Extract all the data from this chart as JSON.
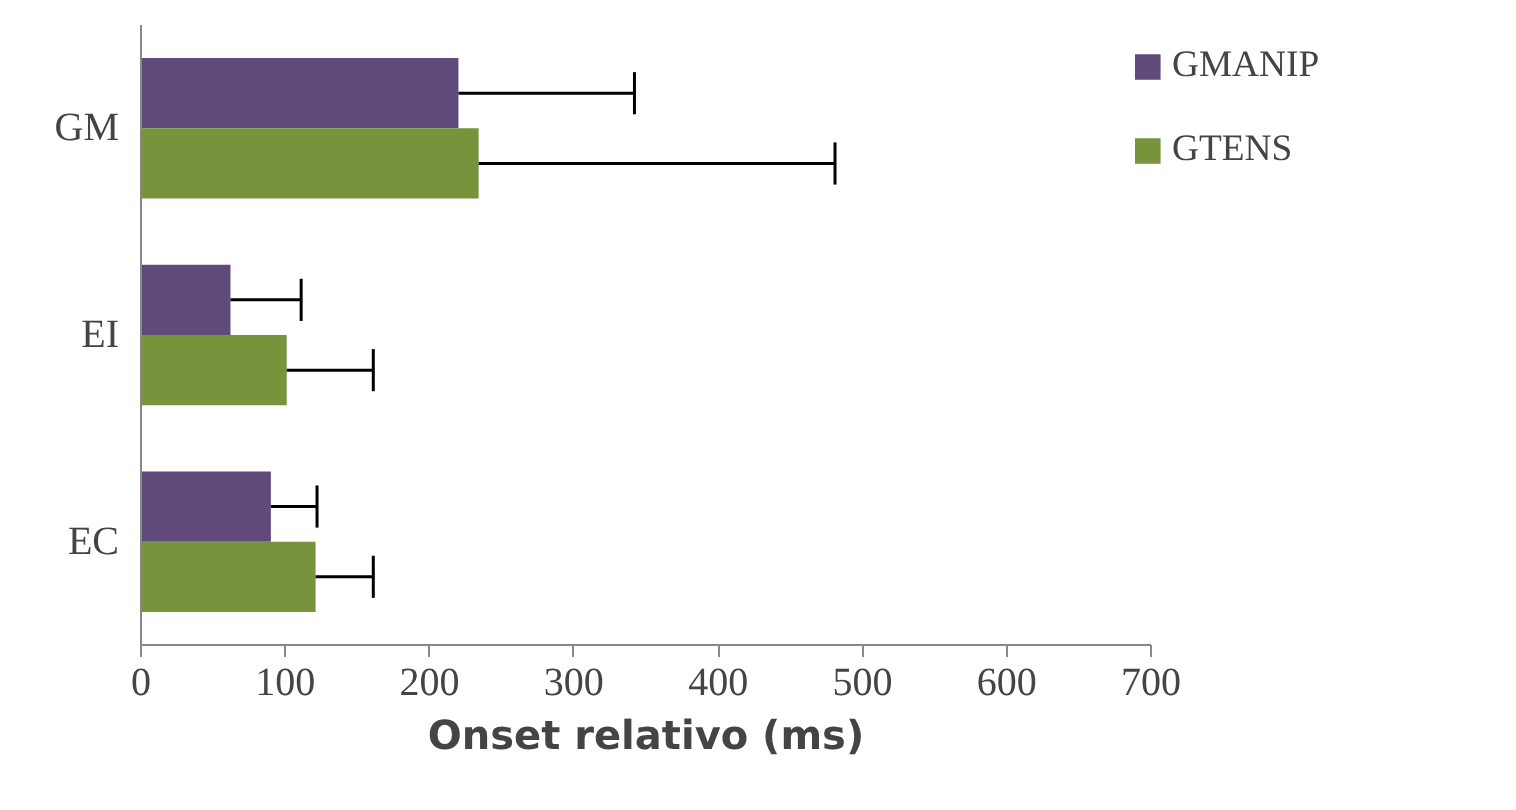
{
  "chart_data": {
    "type": "bar",
    "orientation": "horizontal",
    "categories": [
      "GM",
      "EI",
      "EC"
    ],
    "series": [
      {
        "name": "GMANIP",
        "color": "#604a7b",
        "values": [
          220,
          62,
          90
        ],
        "errors": [
          [
            220,
            342
          ],
          [
            62,
            111
          ],
          [
            90,
            122
          ]
        ]
      },
      {
        "name": "GTENS",
        "color": "#77933c",
        "values": [
          234,
          101,
          121
        ],
        "errors": [
          [
            234,
            481
          ],
          [
            101,
            161
          ],
          [
            121,
            161
          ]
        ]
      }
    ],
    "xlabel": "Onset relativo (ms)",
    "xlim": [
      0,
      700
    ],
    "xticks": [
      0,
      100,
      200,
      300,
      400,
      500,
      600,
      700
    ],
    "grid": false,
    "legend": "right"
  }
}
